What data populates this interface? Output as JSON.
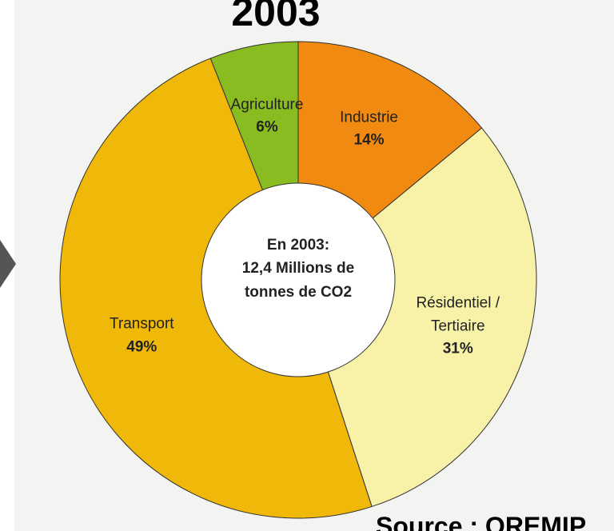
{
  "chart_data": {
    "type": "donut",
    "title": "2003",
    "categories": [
      "Industrie",
      "Résidentiel / Tertiaire",
      "Transport",
      "Agriculture"
    ],
    "values": [
      14,
      31,
      49,
      6
    ],
    "value_labels": [
      "14%",
      "31%",
      "49%",
      "6%"
    ],
    "colors": [
      "#f08a10",
      "#f8f2a8",
      "#f0b808",
      "#88bc20"
    ],
    "center_text": [
      "En 2003:",
      "12,4 Millions de",
      "tonnes de CO2"
    ],
    "source": "Source : OREMIP"
  }
}
